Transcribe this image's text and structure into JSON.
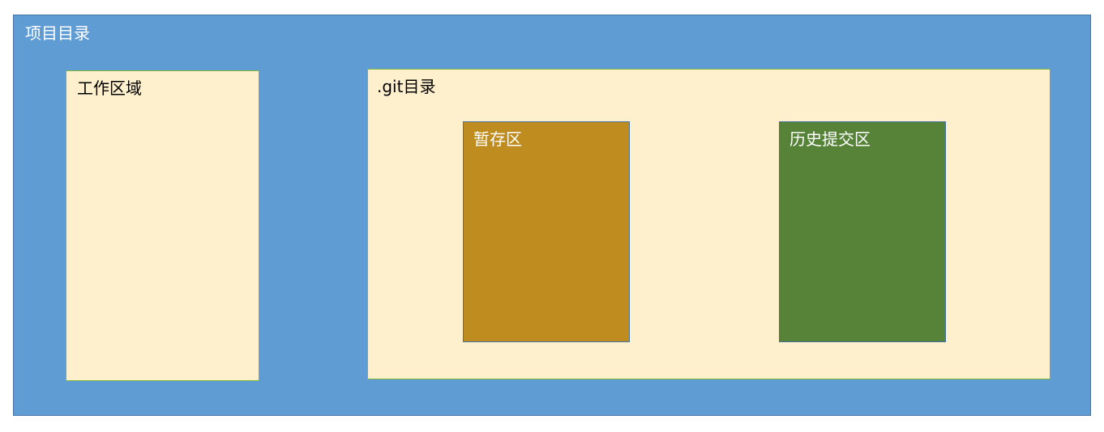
{
  "diagram": {
    "project": {
      "label": "项目目录",
      "workspace": {
        "label": "工作区域"
      },
      "git_dir": {
        "label": ".git目录",
        "staging": {
          "label": "暂存区"
        },
        "history": {
          "label": "历史提交区"
        }
      }
    }
  },
  "colors": {
    "project_fill": "#5e9cd3",
    "container_fill": "#fff0cd",
    "staging_fill": "#bf8c1f",
    "history_fill": "#568338"
  }
}
